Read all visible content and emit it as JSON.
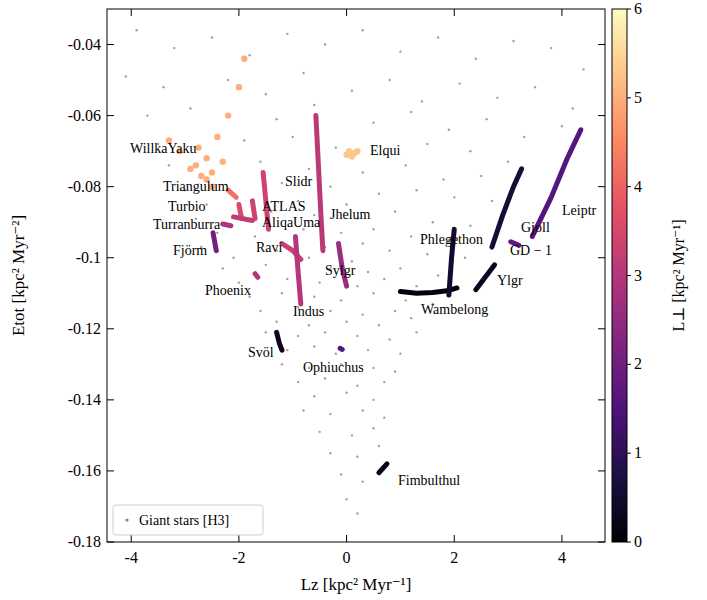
{
  "chart_data": {
    "type": "scatter",
    "x_label": "Lz [kpc² Myr⁻¹]",
    "y_label": "Etot [kpc² Myr⁻²]",
    "xlim": [
      -4.45,
      4.8
    ],
    "ylim": [
      -0.18,
      -0.03
    ],
    "xticks": [
      -4,
      -2,
      0,
      2,
      4
    ],
    "yticks": [
      -0.18,
      -0.16,
      -0.14,
      -0.12,
      -0.1,
      -0.08,
      -0.06,
      -0.04
    ],
    "legend": "lower left",
    "colorbar": {
      "label": "L⊥ [kpc² Myr⁻¹]",
      "lim": [
        0,
        6
      ],
      "ticks": [
        0,
        1,
        2,
        3,
        4,
        5,
        6
      ]
    },
    "series": [
      {
        "name": "Giant stars [H3]",
        "color": "#808080",
        "marker": "o",
        "x": [
          -3.9,
          -3.2,
          -2.5,
          -1.8,
          -1.1,
          -0.4,
          0.3,
          1.0,
          1.7,
          2.4,
          3.1,
          3.8,
          4.4,
          -4.1,
          -3.4,
          -2.2,
          -1.5,
          -0.8,
          0.1,
          0.8,
          1.4,
          2.1,
          2.8,
          3.5,
          4.2,
          -3.7,
          -2.9,
          -1.3,
          -0.6,
          0.5,
          1.2,
          1.9,
          2.6,
          3.3,
          4.0,
          -3.5,
          -1.9,
          -1.0,
          -0.2,
          0.7,
          1.5,
          2.3,
          3.0,
          -3.3,
          -1.6,
          -0.7,
          0.3,
          1.1,
          1.8,
          2.5,
          -3.0,
          -1.2,
          -0.3,
          0.6,
          1.3,
          2.0,
          2.7,
          -2.6,
          -0.9,
          0.0,
          -2.8,
          -1.4,
          -0.6,
          0.2,
          0.9,
          1.6,
          2.3,
          -2.4,
          -1.7,
          -0.8,
          -0.1,
          0.5,
          1.2,
          1.9,
          -2.7,
          -1.3,
          -0.4,
          0.3,
          0.8,
          1.5,
          2.2,
          -2.1,
          -0.7,
          0.1,
          -2.3,
          -1.5,
          -0.9,
          -0.3,
          0.4,
          1.0,
          1.7,
          -2.0,
          -1.1,
          -0.5,
          0.2,
          0.7,
          1.3,
          -1.8,
          -1.2,
          -0.6,
          -0.1,
          0.5,
          1.1,
          1.6,
          -1.6,
          -0.9,
          -0.3,
          0.3,
          0.9,
          -1.3,
          -0.7,
          0.0,
          0.6,
          1.2,
          -1.5,
          -0.9,
          -0.4,
          0.2,
          0.8,
          1.3,
          -1.1,
          -0.6,
          -0.2,
          0.4,
          1.0,
          -1.2,
          -0.7,
          -0.1,
          0.5,
          0.9,
          -0.9,
          -0.4,
          0.2,
          0.7,
          -0.6,
          0.0,
          0.5,
          -0.8,
          -0.3,
          0.3,
          0.7,
          -0.5,
          0.1,
          0.5,
          -0.3,
          0.2,
          0.6,
          -0.1,
          0.3,
          0.0,
          0.2
        ],
        "values": [
          -0.036,
          -0.041,
          -0.038,
          -0.043,
          -0.037,
          -0.04,
          -0.036,
          -0.042,
          -0.038,
          -0.044,
          -0.039,
          -0.041,
          -0.047,
          -0.049,
          -0.052,
          -0.05,
          -0.054,
          -0.048,
          -0.053,
          -0.05,
          -0.056,
          -0.051,
          -0.055,
          -0.052,
          -0.058,
          -0.06,
          -0.058,
          -0.061,
          -0.057,
          -0.062,
          -0.059,
          -0.064,
          -0.061,
          -0.066,
          -0.063,
          -0.068,
          -0.067,
          -0.066,
          -0.069,
          -0.071,
          -0.068,
          -0.07,
          -0.073,
          -0.074,
          -0.073,
          -0.075,
          -0.076,
          -0.074,
          -0.078,
          -0.077,
          -0.081,
          -0.079,
          -0.08,
          -0.082,
          -0.081,
          -0.083,
          -0.084,
          -0.085,
          -0.084,
          -0.085,
          -0.089,
          -0.087,
          -0.088,
          -0.089,
          -0.087,
          -0.09,
          -0.091,
          -0.093,
          -0.094,
          -0.092,
          -0.093,
          -0.092,
          -0.094,
          -0.095,
          -0.097,
          -0.098,
          -0.097,
          -0.096,
          -0.098,
          -0.099,
          -0.1,
          -0.1,
          -0.1,
          -0.101,
          -0.103,
          -0.102,
          -0.104,
          -0.103,
          -0.104,
          -0.103,
          -0.105,
          -0.107,
          -0.106,
          -0.107,
          -0.108,
          -0.106,
          -0.108,
          -0.111,
          -0.11,
          -0.111,
          -0.112,
          -0.11,
          -0.112,
          -0.113,
          -0.115,
          -0.114,
          -0.115,
          -0.116,
          -0.115,
          -0.118,
          -0.119,
          -0.118,
          -0.119,
          -0.117,
          -0.121,
          -0.122,
          -0.121,
          -0.122,
          -0.123,
          -0.121,
          -0.126,
          -0.125,
          -0.127,
          -0.126,
          -0.127,
          -0.13,
          -0.131,
          -0.13,
          -0.131,
          -0.132,
          -0.135,
          -0.134,
          -0.136,
          -0.135,
          -0.139,
          -0.138,
          -0.14,
          -0.143,
          -0.144,
          -0.143,
          -0.145,
          -0.149,
          -0.15,
          -0.148,
          -0.155,
          -0.156,
          -0.153,
          -0.161,
          -0.163,
          -0.168,
          -0.172
        ]
      },
      {
        "name": "WillkaYaku",
        "type": "scatter",
        "l_perp": 5.0,
        "x": [
          -2.6,
          -2.8,
          -2.5,
          -2.7,
          -2.9,
          -2.6,
          -3.1,
          -2.3,
          -2.4,
          -2.2,
          -2.0,
          -1.9,
          -2.75,
          -3.3,
          -2.5
        ],
        "values": [
          -0.072,
          -0.074,
          -0.076,
          -0.077,
          -0.075,
          -0.078,
          -0.07,
          -0.073,
          -0.066,
          -0.06,
          -0.052,
          -0.044,
          -0.069,
          -0.067,
          -0.08
        ]
      },
      {
        "name": "Elqui",
        "type": "scatter",
        "l_perp": 5.3,
        "x": [
          0.05,
          0.15,
          0.1,
          0.0,
          0.2
        ],
        "values": [
          -0.07,
          -0.0705,
          -0.0715,
          -0.071,
          -0.07
        ]
      },
      {
        "name": "Triangulum",
        "type": "line",
        "l_perp": 4.2,
        "x": [
          -2.2,
          -2.05
        ],
        "values": [
          -0.081,
          -0.083
        ]
      },
      {
        "name": "Turbio",
        "type": "line",
        "l_perp": 3.6,
        "x": [
          -2.0,
          -1.95
        ],
        "values": [
          -0.085,
          -0.089
        ]
      },
      {
        "name": "ATLAS",
        "type": "line",
        "l_perp": 3.4,
        "x": [
          -1.75,
          -1.7
        ],
        "values": [
          -0.084,
          -0.089
        ]
      },
      {
        "name": "AliqaUma",
        "type": "line",
        "l_perp": 3.2,
        "x": [
          -2.1,
          -1.75
        ],
        "values": [
          -0.0885,
          -0.0895
        ]
      },
      {
        "name": "Turranburra",
        "type": "line",
        "l_perp": 2.9,
        "x": [
          -2.3,
          -2.15
        ],
        "values": [
          -0.0905,
          -0.091
        ]
      },
      {
        "name": "Fjörm",
        "type": "line",
        "l_perp": 2.0,
        "x": [
          -2.48,
          -2.42
        ],
        "values": [
          -0.093,
          -0.098
        ]
      },
      {
        "name": "Slidr",
        "type": "line",
        "l_perp": 3.4,
        "x": [
          -1.55,
          -1.5,
          -1.45
        ],
        "values": [
          -0.076,
          -0.084,
          -0.092
        ]
      },
      {
        "name": "Jhelum",
        "type": "line",
        "l_perp": 3.1,
        "x": [
          -0.57,
          -0.52,
          -0.47,
          -0.44
        ],
        "values": [
          -0.06,
          -0.075,
          -0.09,
          -0.098
        ]
      },
      {
        "name": "Ravi",
        "type": "line",
        "l_perp": 3.3,
        "x": [
          -1.2,
          -1.0,
          -0.85
        ],
        "values": [
          -0.096,
          -0.098,
          -0.1005
        ]
      },
      {
        "name": "Phoenix",
        "type": "line",
        "l_perp": 3.0,
        "x": [
          -1.7,
          -1.65
        ],
        "values": [
          -0.1045,
          -0.1055
        ]
      },
      {
        "name": "Indus",
        "type": "line",
        "l_perp": 3.0,
        "x": [
          -0.95,
          -0.9,
          -0.85
        ],
        "values": [
          -0.094,
          -0.104,
          -0.113
        ]
      },
      {
        "name": "Sylgr",
        "type": "line",
        "l_perp": 2.6,
        "x": [
          -0.15,
          -0.08,
          0.0
        ],
        "values": [
          -0.096,
          -0.103,
          -0.108
        ]
      },
      {
        "name": "Svöl",
        "type": "line",
        "l_perp": 0.3,
        "x": [
          -1.3,
          -1.25,
          -1.2
        ],
        "values": [
          -0.121,
          -0.124,
          -0.126
        ]
      },
      {
        "name": "Ophiuchus",
        "type": "line",
        "l_perp": 1.6,
        "x": [
          -0.12,
          -0.08
        ],
        "values": [
          -0.1255,
          -0.1258
        ]
      },
      {
        "name": "Fimbulthul",
        "type": "line",
        "l_perp": 0.2,
        "x": [
          0.6,
          0.75
        ],
        "values": [
          -0.1605,
          -0.158
        ]
      },
      {
        "name": "Wambelong",
        "type": "line",
        "l_perp": 0.1,
        "x": [
          1.0,
          1.3,
          1.6,
          1.9,
          2.05
        ],
        "values": [
          -0.1095,
          -0.11,
          -0.1098,
          -0.1092,
          -0.1085
        ]
      },
      {
        "name": "Phlegethon",
        "type": "line",
        "l_perp": 0.5,
        "x": [
          1.9,
          1.95,
          2.0
        ],
        "values": [
          -0.1105,
          -0.1,
          -0.092
        ]
      },
      {
        "name": "Ylgr",
        "type": "line",
        "l_perp": 0.3,
        "x": [
          2.4,
          2.55,
          2.75
        ],
        "values": [
          -0.109,
          -0.106,
          -0.102
        ]
      },
      {
        "name": "Gjoll",
        "type": "line",
        "l_perp": 0.6,
        "x": [
          2.7,
          2.9,
          3.1,
          3.25
        ],
        "values": [
          -0.097,
          -0.088,
          -0.08,
          -0.075
        ]
      },
      {
        "name": "GD − 1",
        "type": "line",
        "l_perp": 1.8,
        "x": [
          3.05,
          3.2
        ],
        "values": [
          -0.0955,
          -0.0965
        ]
      },
      {
        "name": "Leiptr",
        "type": "line",
        "l_perp": 1.6,
        "x": [
          3.45,
          3.8,
          4.1,
          4.35
        ],
        "values": [
          -0.094,
          -0.083,
          -0.072,
          -0.064
        ]
      }
    ]
  }
}
